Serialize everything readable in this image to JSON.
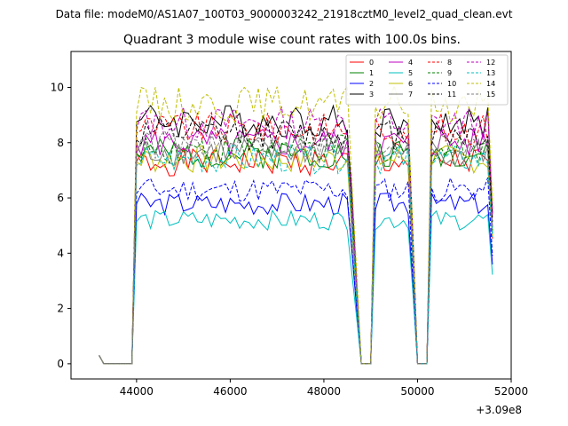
{
  "chart_data": {
    "type": "line",
    "suptitle": "Data file: modeM0/AS1A07_100T03_9000003242_21918cztM0_level2_quad_clean.evt",
    "title": "Quadrant 3 module wise count rates with 100.0s bins.",
    "xlabel": "",
    "ylabel": "",
    "x_offset_label": "+3.09e8",
    "xlim": [
      42600,
      52000
    ],
    "ylim": [
      -0.55,
      11.3
    ],
    "xticks": [
      44000,
      46000,
      48000,
      50000,
      52000
    ],
    "xtick_labels": [
      "44000",
      "46000",
      "48000",
      "50000",
      "52000"
    ],
    "yticks": [
      0,
      2,
      4,
      6,
      8,
      10
    ],
    "ytick_labels": [
      "0",
      "2",
      "4",
      "6",
      "8",
      "10"
    ],
    "grid": false,
    "legend_position": "top-right",
    "legend_columns": 4,
    "segments": [
      {
        "start": 43200,
        "end": 44000,
        "shape": "start"
      },
      {
        "start": 44000,
        "end": 48500,
        "shape": "plateau"
      },
      {
        "start": 48500,
        "end": 48800,
        "shape": "drop"
      },
      {
        "start": 48800,
        "end": 49100,
        "shape": "gap"
      },
      {
        "start": 49100,
        "end": 49800,
        "shape": "plateau"
      },
      {
        "start": 49800,
        "end": 50000,
        "shape": "drop"
      },
      {
        "start": 50000,
        "end": 50300,
        "shape": "gap"
      },
      {
        "start": 50300,
        "end": 51600,
        "shape": "plateau"
      }
    ],
    "series": [
      {
        "name": "0",
        "color": "#ff0000",
        "dash": "solid",
        "level": 7.3
      },
      {
        "name": "1",
        "color": "#008000",
        "dash": "solid",
        "level": 7.6
      },
      {
        "name": "2",
        "color": "#0000ff",
        "dash": "solid",
        "level": 5.8
      },
      {
        "name": "3",
        "color": "#000000",
        "dash": "solid",
        "level": 8.8
      },
      {
        "name": "4",
        "color": "#bf00bf",
        "dash": "solid",
        "level": 8.0
      },
      {
        "name": "5",
        "color": "#00bfbf",
        "dash": "solid",
        "level": 5.2
      },
      {
        "name": "6",
        "color": "#bfbf00",
        "dash": "solid",
        "level": 7.4
      },
      {
        "name": "7",
        "color": "#808080",
        "dash": "solid",
        "level": 7.7
      },
      {
        "name": "8",
        "color": "#ff0000",
        "dash": "dashed",
        "level": 8.5
      },
      {
        "name": "9",
        "color": "#008000",
        "dash": "dashed",
        "level": 7.8
      },
      {
        "name": "10",
        "color": "#0000ff",
        "dash": "dashed",
        "level": 6.3
      },
      {
        "name": "11",
        "color": "#000000",
        "dash": "dashed",
        "level": 8.3
      },
      {
        "name": "12",
        "color": "#bf00bf",
        "dash": "dashed",
        "level": 8.7
      },
      {
        "name": "13",
        "color": "#00bfbf",
        "dash": "dashed",
        "level": 7.4
      },
      {
        "name": "14",
        "color": "#bfbf00",
        "dash": "dashed",
        "level": 9.4
      },
      {
        "name": "15",
        "color": "#808080",
        "dash": "dashed",
        "level": 7.9
      }
    ]
  }
}
